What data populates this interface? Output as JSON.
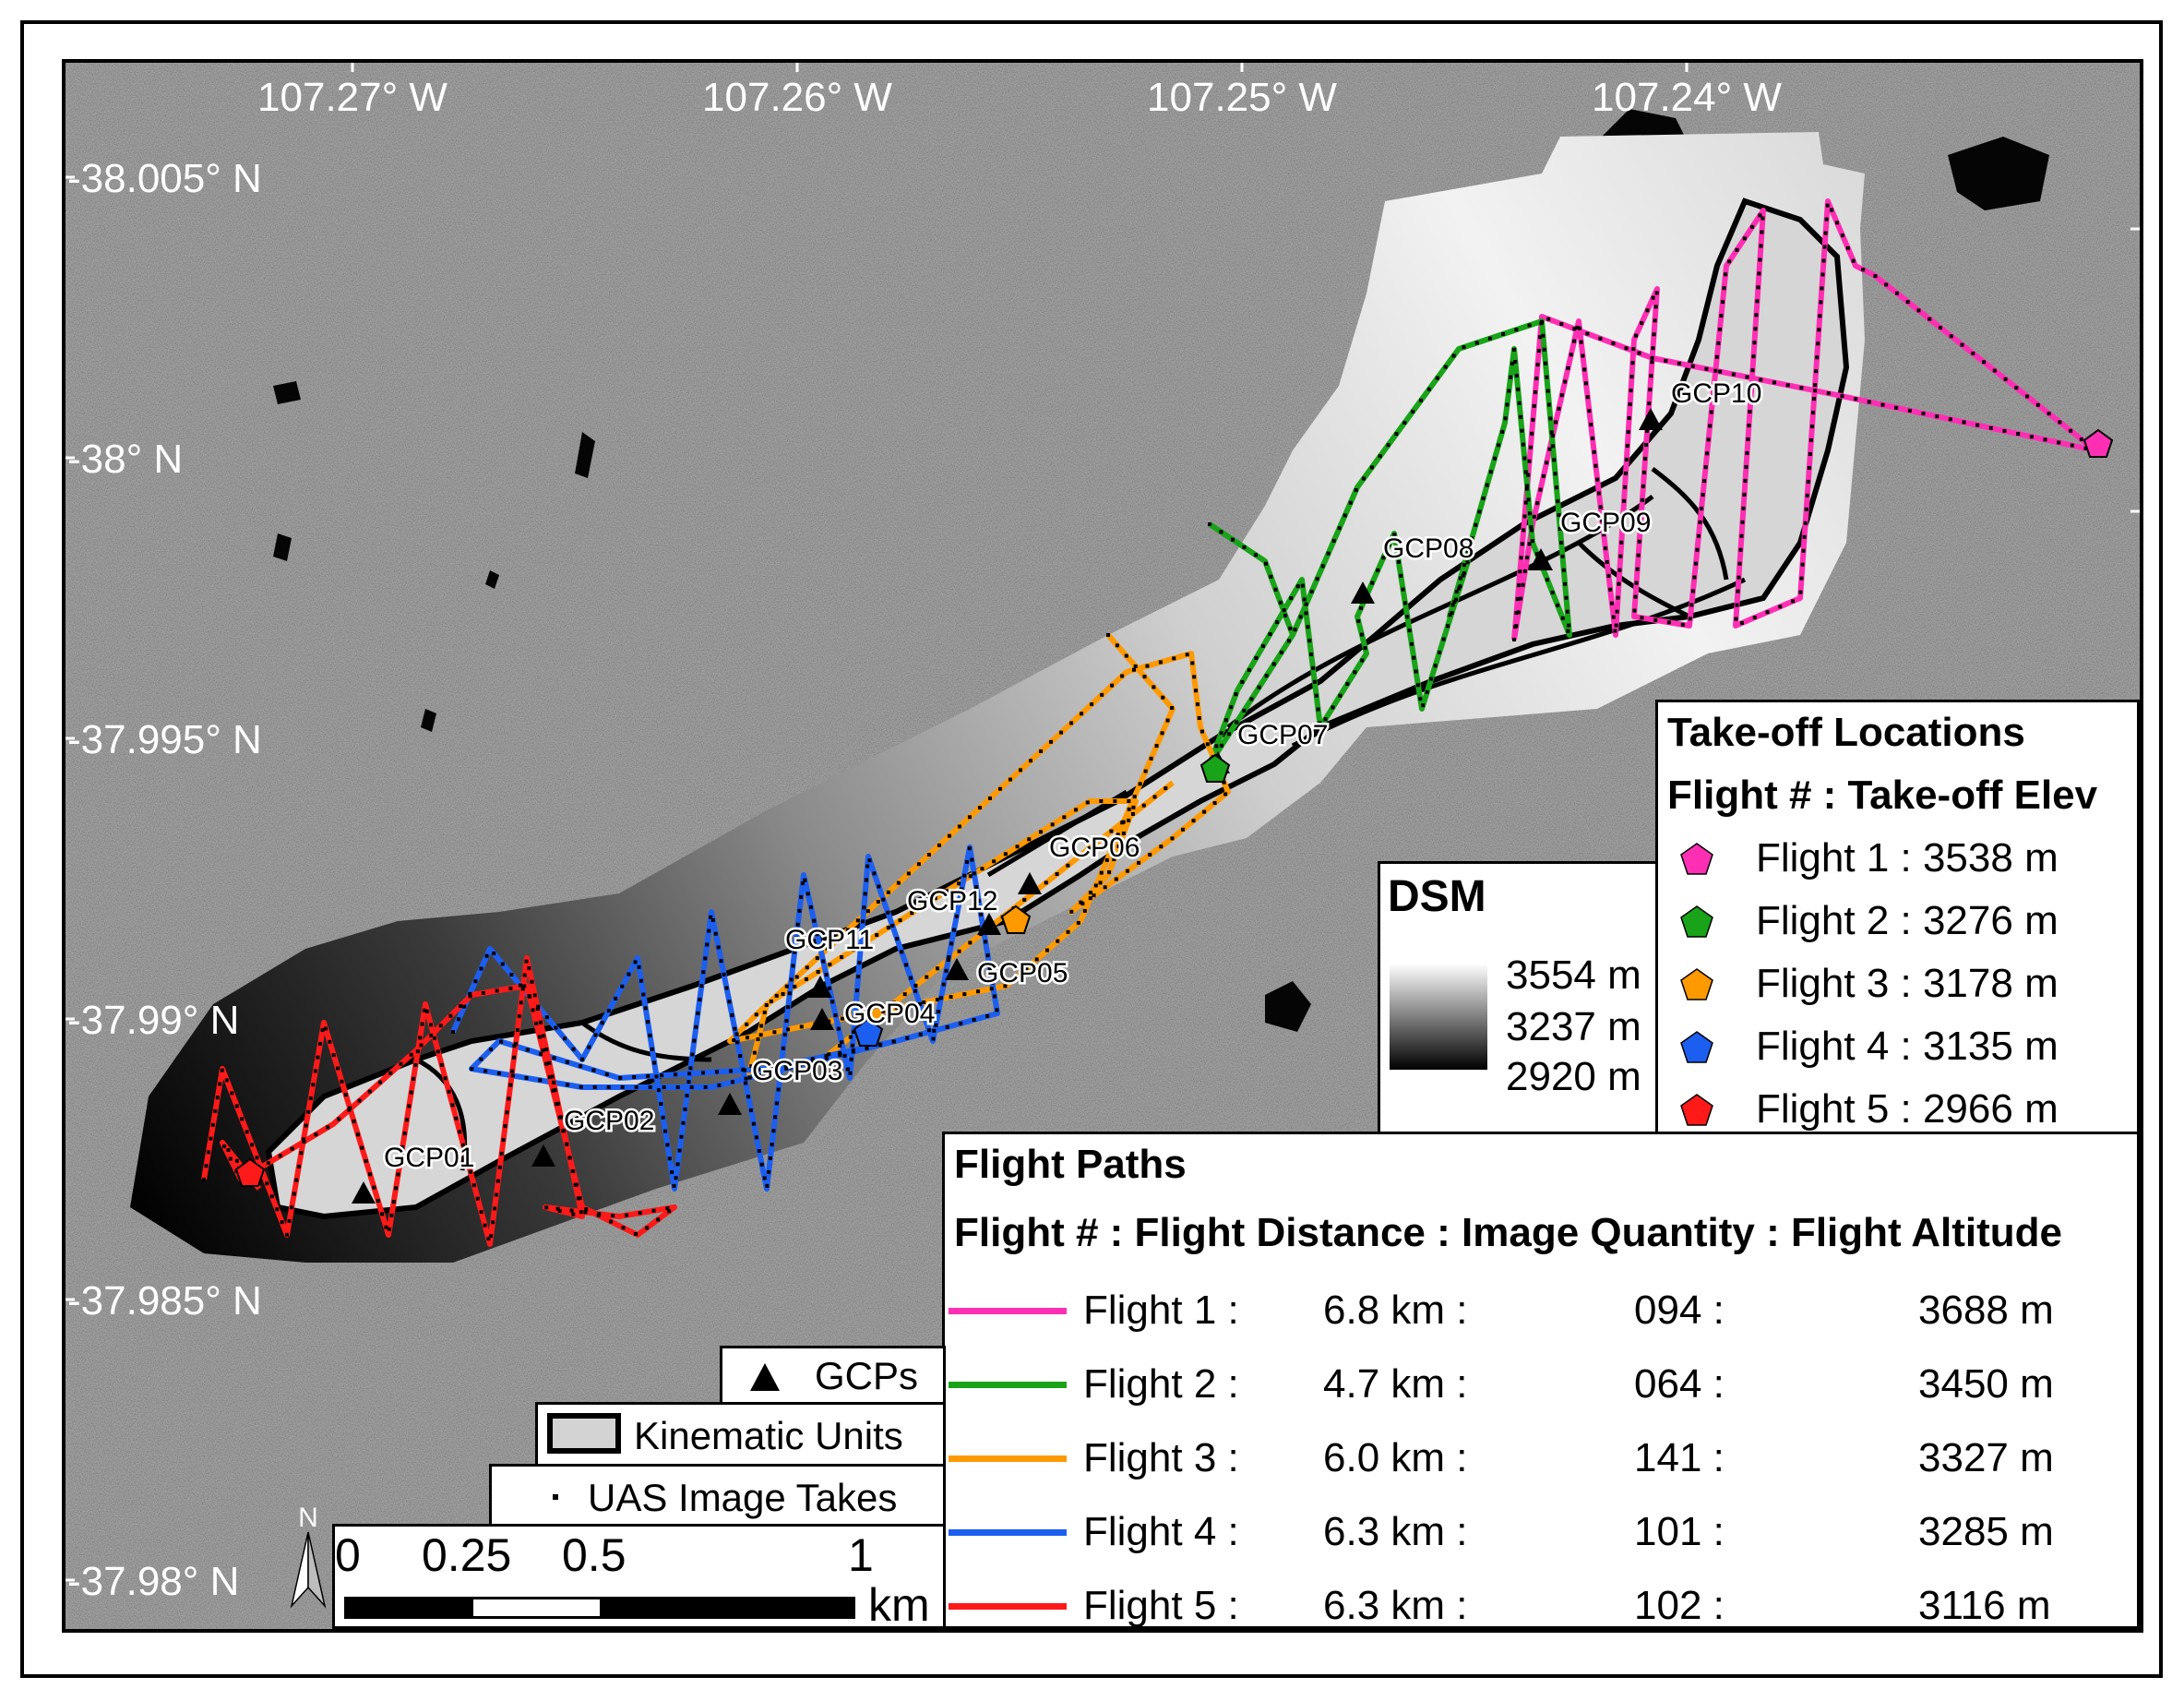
{
  "map": {
    "lon_labels": [
      "107.27° W",
      "107.26° W",
      "107.25° W",
      "107.24° W"
    ],
    "lat_labels": [
      "-38.005° N",
      "-38° N",
      "-37.995° N",
      "-37.99° N",
      "-37.985° N",
      "-37.98° N"
    ],
    "gcps": [
      "GCP01",
      "GCP02",
      "GCP03",
      "GCP04",
      "GCP05",
      "GCP06",
      "GCP07",
      "GCP08",
      "GCP09",
      "GCP10",
      "GCP11",
      "GCP12"
    ],
    "north_label": "N"
  },
  "dsm": {
    "title": "DSM",
    "max": "3554 m",
    "mid": "3237 m",
    "min": "2920 m"
  },
  "takeoff": {
    "title": "Take-off Locations",
    "subtitle": "Flight # : Take-off Elev",
    "items": [
      {
        "label": "Flight 1 : 3538 m",
        "color": "#ff2fb4"
      },
      {
        "label": "Flight 2 : 3276 m",
        "color": "#19a319"
      },
      {
        "label": "Flight 3 : 3178 m",
        "color": "#ff9900"
      },
      {
        "label": "Flight 4 : 3135 m",
        "color": "#1c5ff0"
      },
      {
        "label": "Flight 5 : 2966 m",
        "color": "#ff1a1a"
      }
    ]
  },
  "paths": {
    "title": "Flight Paths",
    "subtitle": "Flight # : Flight Distance : Image Quantity : Flight Altitude",
    "rows": [
      {
        "flight": "Flight 1 :",
        "distance": "6.8 km :",
        "images": "094 :",
        "altitude": "3688 m",
        "color": "#ff2fb4"
      },
      {
        "flight": "Flight 2 :",
        "distance": "4.7 km :",
        "images": "064 :",
        "altitude": "3450 m",
        "color": "#19a319"
      },
      {
        "flight": "Flight 3 :",
        "distance": "6.0 km :",
        "images": "141 :",
        "altitude": "3327 m",
        "color": "#ff9900"
      },
      {
        "flight": "Flight 4 :",
        "distance": "6.3 km :",
        "images": "101 :",
        "altitude": "3285 m",
        "color": "#1c5ff0"
      },
      {
        "flight": "Flight 5 :",
        "distance": "6.3 km :",
        "images": "102 :",
        "altitude": "3116 m",
        "color": "#ff1a1a"
      }
    ]
  },
  "legend": {
    "gcps": "GCPs",
    "kinematic": "Kinematic Units",
    "uas": "UAS Image Takes"
  },
  "scale": {
    "ticks": [
      "0",
      "0.25",
      "0.5",
      "1"
    ],
    "unit": "km"
  }
}
